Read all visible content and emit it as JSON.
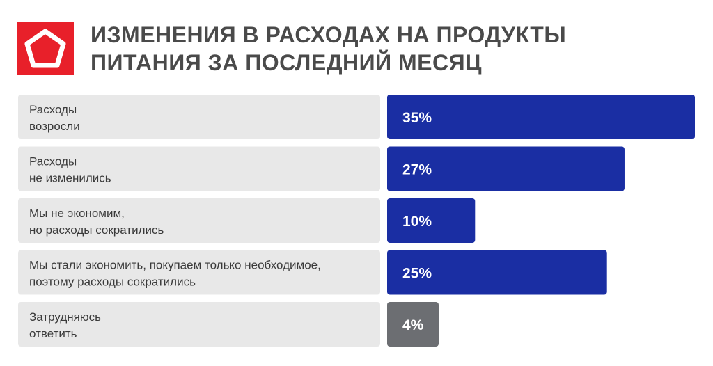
{
  "header": {
    "title_line1": "ИЗМЕНЕНИЯ В РАСХОДАХ НА ПРОДУКТЫ",
    "title_line2": "ПИТАНИЯ ЗА ПОСЛЕДНИЙ МЕСЯЦ",
    "logo_icon": "pentagon-logo-icon",
    "brand_color": "#e8202a"
  },
  "chart_data": {
    "type": "bar",
    "orientation": "horizontal",
    "title": "ИЗМЕНЕНИЯ В РАСХОДАХ НА ПРОДУКТЫ ПИТАНИЯ ЗА ПОСЛЕДНИЙ МЕСЯЦ",
    "categories": [
      [
        "Расходы",
        "возросли"
      ],
      [
        "Расходы",
        "не изменились"
      ],
      [
        "Мы не экономим,",
        "но расходы сократились"
      ],
      [
        "Мы стали экономить, покупаем только необходимое,",
        "поэтому расходы сократились"
      ],
      [
        "Затрудняюсь",
        "ответить"
      ]
    ],
    "values": [
      35,
      27,
      10,
      25,
      4
    ],
    "value_labels": [
      "35%",
      "27%",
      "10%",
      "25%",
      "4%"
    ],
    "unit": "%",
    "colors": [
      "#1a2ea3",
      "#1a2ea3",
      "#1a2ea3",
      "#1a2ea3",
      "#6c6e72"
    ],
    "label_background": "#e8e8e8",
    "xlim": [
      0,
      35
    ]
  }
}
